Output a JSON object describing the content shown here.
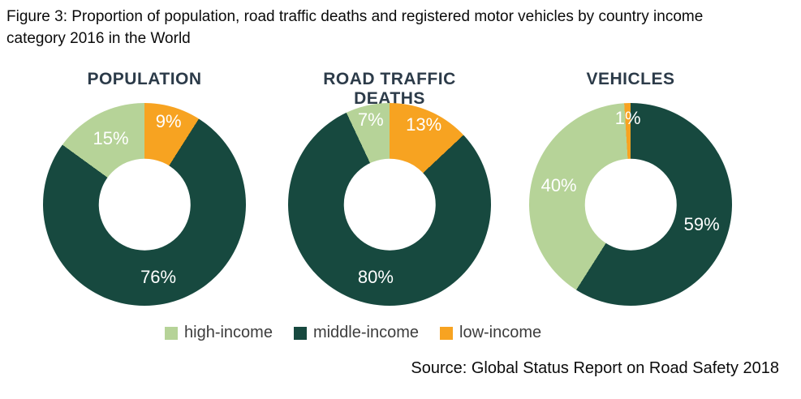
{
  "figure": {
    "caption_lines": [
      "Figure 3: Proportion of population, road traffic deaths and registered motor vehicles by country income",
      "category 2016 in the World"
    ],
    "source": "Source: Global Status Report on Road Safety 2018"
  },
  "colors": {
    "high-income": "#B6D398",
    "middle-income": "#17493F",
    "low-income": "#F7A321",
    "chart_title": "#2C3B49",
    "label_text": "#FFFFFF"
  },
  "legend": [
    {
      "key": "high-income",
      "label": "high-income"
    },
    {
      "key": "middle-income",
      "label": "middle-income"
    },
    {
      "key": "low-income",
      "label": "low-income"
    }
  ],
  "chart_data": [
    {
      "type": "pie",
      "subtype": "donut",
      "title": "POPULATION",
      "units": "percent",
      "start_angle_deg": 0,
      "direction": "clockwise",
      "segments": [
        {
          "label": "low-income",
          "value": 9
        },
        {
          "label": "middle-income",
          "value": 76
        },
        {
          "label": "high-income",
          "value": 15
        }
      ]
    },
    {
      "type": "pie",
      "subtype": "donut",
      "title": "ROAD TRAFFIC DEATHS",
      "units": "percent",
      "start_angle_deg": 0,
      "direction": "clockwise",
      "segments": [
        {
          "label": "low-income",
          "value": 13
        },
        {
          "label": "middle-income",
          "value": 80
        },
        {
          "label": "high-income",
          "value": 7
        }
      ]
    },
    {
      "type": "pie",
      "subtype": "donut",
      "title": "VEHICLES",
      "units": "percent",
      "start_angle_deg": 0,
      "direction": "clockwise",
      "segments": [
        {
          "label": "middle-income",
          "value": 59
        },
        {
          "label": "high-income",
          "value": 40
        },
        {
          "label": "low-income",
          "value": 1
        }
      ]
    }
  ],
  "layout_hints": {
    "legend_position": "bottom",
    "hole_ratio": 0.45
  }
}
